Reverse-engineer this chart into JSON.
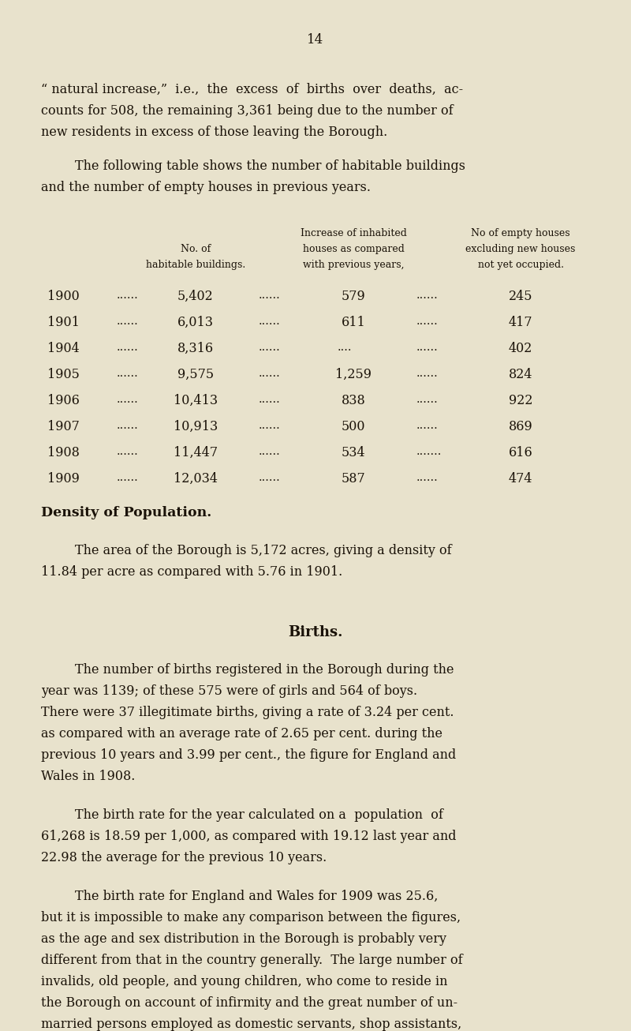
{
  "background_color": "#e8e2cc",
  "page_number": "14",
  "text_color": "#1a1208",
  "font_family": "DejaVu Serif",
  "paragraph1_line1": "“ natural increase,”  i.e.,  the  excess  of  births  over  deaths,  ac-",
  "paragraph1_line2": "counts for 508, the remaining 3,361 being due to the number of",
  "paragraph1_line3": "new residents in excess of those leaving the Borough.",
  "paragraph2_line1": "The following table shows the number of habitable buildings",
  "paragraph2_line2": "and the number of empty houses in previous years.",
  "col_header1_line1": "No. of",
  "col_header1_line2": "habitable buildings.",
  "col_header2_line1": "Increase of inhabited",
  "col_header2_line2": "houses as compared",
  "col_header2_line3": "with previous years,",
  "col_header3_line1": "No of empty houses",
  "col_header3_line2": "excluding new houses",
  "col_header3_line3": "not yet occupied.",
  "table_years": [
    "1900",
    "1901",
    "1904",
    "1905",
    "1906",
    "1907",
    "1908",
    "1909"
  ],
  "table_buildings": [
    "5,402",
    "6,013",
    "8,316",
    "9,575",
    "10,413",
    "10,913",
    "11,447",
    "12,034"
  ],
  "table_increase": [
    "579",
    "611",
    "",
    "1,259",
    "838",
    "500",
    "534",
    "587"
  ],
  "table_increase_dots": [
    "......",
    "......",
    "......",
    "......",
    "......",
    "......",
    ".......",
    "......"
  ],
  "table_empty": [
    "245",
    "417",
    "402",
    "824",
    "922",
    "869",
    "616",
    "474"
  ],
  "density_heading": "Density of Population.",
  "density_line1": "The area of the Borough is 5,172 acres, giving a density of",
  "density_line2": "11.84 per acre as compared with 5.76 in 1901.",
  "births_heading": "Births.",
  "births_p1_l1": "The number of births registered in the Borough during the",
  "births_p1_l2": "year was 1139; of these 575 were of girls and 564 of boys.",
  "births_p1_l3": "There were 37 illegitimate births, giving a rate of 3.24 per cent.",
  "births_p1_l4": "as compared with an average rate of 2.65 per cent. during the",
  "births_p1_l5": "previous 10 years and 3.99 per cent., the figure for England and",
  "births_p1_l6": "Wales in 1908.",
  "births_p2_l1": "The birth rate for the year calculated on a  population  of",
  "births_p2_l2": "61,268 is 18.59 per 1,000, as compared with 19.12 last year and",
  "births_p2_l3": "22.98 the average for the previous 10 years.",
  "births_p3_l1": "The birth rate for England and Wales for 1909 was 25.6,",
  "births_p3_l2": "but it is impossible to make any comparison between the figures,",
  "births_p3_l3": "as the age and sex distribution in the Borough is probably very",
  "births_p3_l4": "different from that in the country generally.  The large number of",
  "births_p3_l5": "invalids, old people, and young children, who come to reside in",
  "births_p3_l6": "the Borough on account of infirmity and the great number of un-",
  "births_p3_l7": "married persons employed as domestic servants, shop assistants,"
}
